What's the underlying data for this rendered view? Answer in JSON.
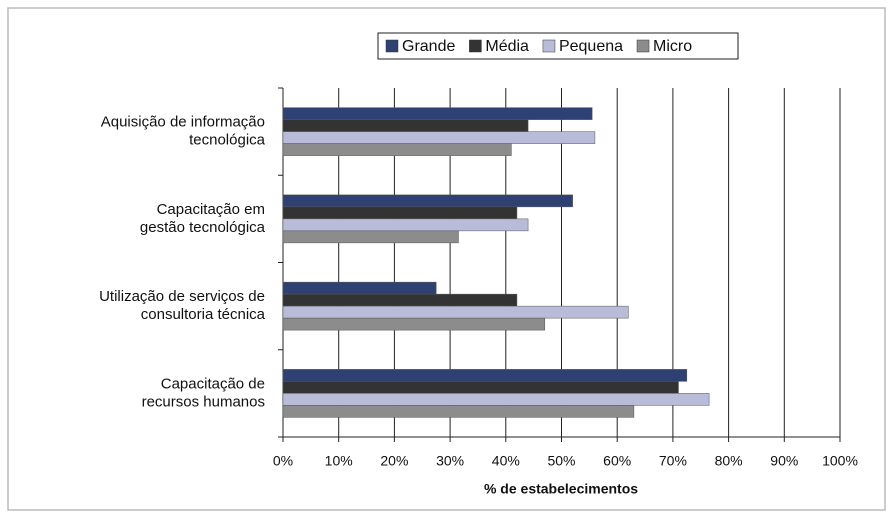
{
  "chart_data": {
    "type": "hbar",
    "categories": [
      "Aquisição de informação\ntecnológica",
      "Capacitação em\ngestão tecnológica",
      "Utilização de serviços de\nconsultoria técnica",
      "Capacitação de\nrecursos humanos"
    ],
    "series": [
      {
        "name": "Grande",
        "color": "#2f4172",
        "values": [
          55.5,
          52,
          27.5,
          72.5
        ]
      },
      {
        "name": "Média",
        "color": "#333333",
        "values": [
          44,
          42,
          42,
          71
        ]
      },
      {
        "name": "Pequena",
        "color": "#b9bcd9",
        "values": [
          56,
          44,
          62,
          76.5
        ]
      },
      {
        "name": "Micro",
        "color": "#8c8c8c",
        "values": [
          41,
          31.5,
          47,
          63
        ]
      }
    ],
    "xlabel": "% de estabelecimentos",
    "xlim": [
      0,
      100
    ],
    "xticks": [
      {
        "value": 0,
        "label": "0%"
      },
      {
        "value": 10,
        "label": "10%"
      },
      {
        "value": 20,
        "label": "20%"
      },
      {
        "value": 30,
        "label": "30%"
      },
      {
        "value": 40,
        "label": "40%"
      },
      {
        "value": 50,
        "label": "50%"
      },
      {
        "value": 60,
        "label": "60%"
      },
      {
        "value": 70,
        "label": "70%"
      },
      {
        "value": 80,
        "label": "80%"
      },
      {
        "value": 90,
        "label": "90%"
      },
      {
        "value": 100,
        "label": "100%"
      }
    ],
    "grid": true,
    "legend": "top"
  }
}
